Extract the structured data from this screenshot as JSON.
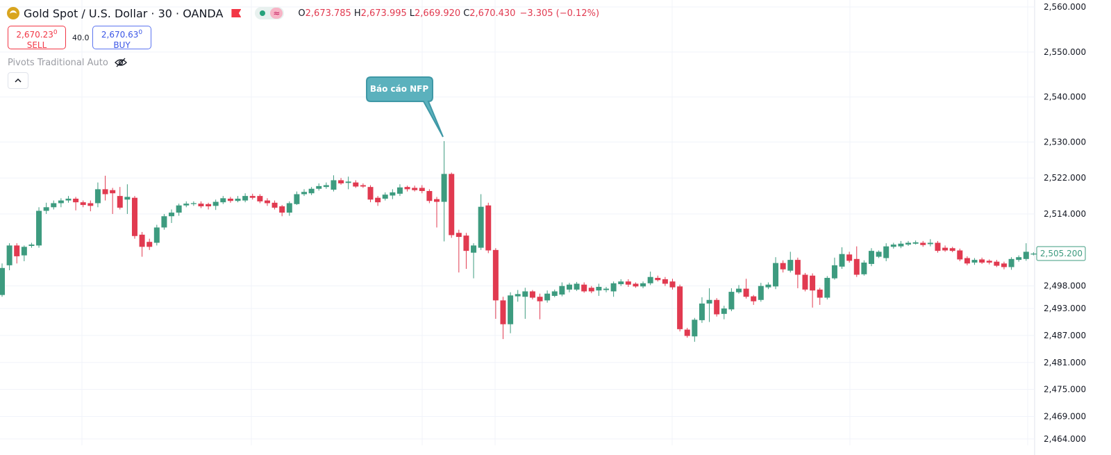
{
  "header": {
    "symbol": "Gold Spot / U.S. Dollar · 30 · OANDA",
    "ohlc": [
      {
        "key": "O",
        "value": "2,673.785"
      },
      {
        "key": "H",
        "value": "2,673.995"
      },
      {
        "key": "L",
        "value": "2,669.920"
      },
      {
        "key": "C",
        "value": "2,670.430"
      }
    ],
    "change": "−3.305 (−0.12%)"
  },
  "trade": {
    "sell_price": "2,670.23",
    "sell_price_pip": "0",
    "sell_label": "SELL",
    "spread": "40.0",
    "buy_price": "2,670.63",
    "buy_price_pip": "0",
    "buy_label": "BUY"
  },
  "indicator": "Pivots Traditional Auto",
  "chart_data": {
    "type": "candlestick",
    "up_color": "#3d9b7f",
    "down_color": "#e13a50",
    "grid": true,
    "annotation": "Báo cáo NFP",
    "ylim": [
      2462.6,
      2561.55
    ],
    "yticks": [
      {
        "value": 2560,
        "label": "2,560.000"
      },
      {
        "value": 2550,
        "label": "2,550.000"
      },
      {
        "value": 2540,
        "label": "2,540.000"
      },
      {
        "value": 2530,
        "label": "2,530.000"
      },
      {
        "value": 2522,
        "label": "2,522.000"
      },
      {
        "value": 2514,
        "label": "2,514.000"
      },
      {
        "value": 2498,
        "label": "2,498.000"
      },
      {
        "value": 2493,
        "label": "2,493.000"
      },
      {
        "value": 2487,
        "label": "2,487.000"
      },
      {
        "value": 2481,
        "label": "2,481.000"
      },
      {
        "value": 2475,
        "label": "2,475.000"
      },
      {
        "value": 2469,
        "label": "2,469.000"
      },
      {
        "value": 2464,
        "label": "2,464.000"
      }
    ],
    "last_price": {
      "value": 2505.2,
      "label": "2,505.200"
    },
    "candles": [
      {
        "o": 2496,
        "h": 2503,
        "l": 2495.6,
        "c": 2502
      },
      {
        "o": 2502.6,
        "h": 2507.5,
        "l": 2501.5,
        "c": 2507
      },
      {
        "o": 2507,
        "h": 2507.5,
        "l": 2503,
        "c": 2504.6
      },
      {
        "o": 2504.8,
        "h": 2507,
        "l": 2503.5,
        "c": 2506.7
      },
      {
        "o": 2506.9,
        "h": 2507.6,
        "l": 2506.5,
        "c": 2507.2
      },
      {
        "o": 2507,
        "h": 2515.5,
        "l": 2506.5,
        "c": 2514.7
      },
      {
        "o": 2514.7,
        "h": 2516.5,
        "l": 2514,
        "c": 2515.5
      },
      {
        "o": 2515.5,
        "h": 2517,
        "l": 2515,
        "c": 2516.4
      },
      {
        "o": 2516.4,
        "h": 2517.5,
        "l": 2515.5,
        "c": 2517
      },
      {
        "o": 2517,
        "h": 2518,
        "l": 2516.5,
        "c": 2517.4
      },
      {
        "o": 2517.4,
        "h": 2517.8,
        "l": 2514.8,
        "c": 2516.6
      },
      {
        "o": 2516.6,
        "h": 2517,
        "l": 2515.5,
        "c": 2516
      },
      {
        "o": 2516.4,
        "h": 2517,
        "l": 2514.6,
        "c": 2515.8
      },
      {
        "o": 2516.4,
        "h": 2521,
        "l": 2515.5,
        "c": 2519.5
      },
      {
        "o": 2519.5,
        "h": 2522.5,
        "l": 2517,
        "c": 2518.4
      },
      {
        "o": 2519.3,
        "h": 2519.8,
        "l": 2514,
        "c": 2518.6
      },
      {
        "o": 2518,
        "h": 2520,
        "l": 2515,
        "c": 2515.4
      },
      {
        "o": 2517.2,
        "h": 2520.6,
        "l": 2514,
        "c": 2517.8
      },
      {
        "o": 2517.6,
        "h": 2518,
        "l": 2508.5,
        "c": 2509.1
      },
      {
        "o": 2509.4,
        "h": 2510,
        "l": 2504.5,
        "c": 2506.7
      },
      {
        "o": 2507.8,
        "h": 2508.5,
        "l": 2506,
        "c": 2506.7
      },
      {
        "o": 2507.6,
        "h": 2511.6,
        "l": 2507,
        "c": 2511
      },
      {
        "o": 2511,
        "h": 2514,
        "l": 2510.5,
        "c": 2513.5
      },
      {
        "o": 2513.5,
        "h": 2515,
        "l": 2512,
        "c": 2514.3
      },
      {
        "o": 2514.3,
        "h": 2516.3,
        "l": 2513.6,
        "c": 2515.9
      },
      {
        "o": 2515.9,
        "h": 2516.8,
        "l": 2515.5,
        "c": 2516.3
      },
      {
        "o": 2516.2,
        "h": 2516.8,
        "l": 2515.8,
        "c": 2516.4
      },
      {
        "o": 2516.3,
        "h": 2516.8,
        "l": 2515.3,
        "c": 2515.7
      },
      {
        "o": 2516.2,
        "h": 2516.5,
        "l": 2515,
        "c": 2515.7
      },
      {
        "o": 2515.8,
        "h": 2517.2,
        "l": 2514.9,
        "c": 2516.7
      },
      {
        "o": 2516.6,
        "h": 2518,
        "l": 2516.2,
        "c": 2517.5
      },
      {
        "o": 2517.4,
        "h": 2517.8,
        "l": 2516.5,
        "c": 2516.9
      },
      {
        "o": 2516.9,
        "h": 2518,
        "l": 2516.6,
        "c": 2517.4
      },
      {
        "o": 2517,
        "h": 2518.6,
        "l": 2516.6,
        "c": 2518
      },
      {
        "o": 2518,
        "h": 2518.5,
        "l": 2517.2,
        "c": 2517.6
      },
      {
        "o": 2518,
        "h": 2518.4,
        "l": 2516.4,
        "c": 2516.8
      },
      {
        "o": 2517,
        "h": 2517.5,
        "l": 2515.8,
        "c": 2516.4
      },
      {
        "o": 2516.5,
        "h": 2517,
        "l": 2515,
        "c": 2515.4
      },
      {
        "o": 2515.7,
        "h": 2516,
        "l": 2513.5,
        "c": 2514.3
      },
      {
        "o": 2514.3,
        "h": 2516.8,
        "l": 2513.6,
        "c": 2516.4
      },
      {
        "o": 2516.2,
        "h": 2519,
        "l": 2516,
        "c": 2518.4
      },
      {
        "o": 2518.4,
        "h": 2519.5,
        "l": 2518,
        "c": 2518.9
      },
      {
        "o": 2518.6,
        "h": 2520,
        "l": 2518.2,
        "c": 2519.6
      },
      {
        "o": 2519.6,
        "h": 2520.8,
        "l": 2519.2,
        "c": 2520.2
      },
      {
        "o": 2520,
        "h": 2521,
        "l": 2519.6,
        "c": 2520.4
      },
      {
        "o": 2519.4,
        "h": 2522.6,
        "l": 2519,
        "c": 2521.5
      },
      {
        "o": 2521.5,
        "h": 2522,
        "l": 2520.5,
        "c": 2520.8
      },
      {
        "o": 2520.9,
        "h": 2522.3,
        "l": 2519.5,
        "c": 2521.2
      },
      {
        "o": 2521,
        "h": 2521.5,
        "l": 2519.8,
        "c": 2520.1
      },
      {
        "o": 2520.4,
        "h": 2520.8,
        "l": 2519.8,
        "c": 2520.1
      },
      {
        "o": 2520,
        "h": 2520.4,
        "l": 2516.6,
        "c": 2517.2
      },
      {
        "o": 2517.6,
        "h": 2518,
        "l": 2515.8,
        "c": 2516.6
      },
      {
        "o": 2517.4,
        "h": 2518.8,
        "l": 2517,
        "c": 2518.3
      },
      {
        "o": 2518.1,
        "h": 2519.5,
        "l": 2517.3,
        "c": 2518.8
      },
      {
        "o": 2518.5,
        "h": 2520.6,
        "l": 2518,
        "c": 2519.9
      },
      {
        "o": 2520,
        "h": 2520.3,
        "l": 2519,
        "c": 2519.5
      },
      {
        "o": 2519.8,
        "h": 2520.3,
        "l": 2519,
        "c": 2519.3
      },
      {
        "o": 2519.8,
        "h": 2520.4,
        "l": 2518.6,
        "c": 2519.1
      },
      {
        "o": 2519.1,
        "h": 2519.5,
        "l": 2516.4,
        "c": 2516.9
      },
      {
        "o": 2517.3,
        "h": 2517.8,
        "l": 2511,
        "c": 2516.7
      },
      {
        "o": 2516.7,
        "h": 2530.2,
        "l": 2507.9,
        "c": 2522.9
      },
      {
        "o": 2522.9,
        "h": 2523.2,
        "l": 2508.7,
        "c": 2509.3
      },
      {
        "o": 2509.8,
        "h": 2510.5,
        "l": 2501,
        "c": 2508.9
      },
      {
        "o": 2509.2,
        "h": 2509.8,
        "l": 2501.8,
        "c": 2505.8
      },
      {
        "o": 2505.4,
        "h": 2507.5,
        "l": 2499.7,
        "c": 2507
      },
      {
        "o": 2506.5,
        "h": 2518.4,
        "l": 2506,
        "c": 2515.6
      },
      {
        "o": 2515.9,
        "h": 2516.5,
        "l": 2505.3,
        "c": 2505.9
      },
      {
        "o": 2506,
        "h": 2506.4,
        "l": 2490.7,
        "c": 2494.8
      },
      {
        "o": 2494.8,
        "h": 2495.6,
        "l": 2486.2,
        "c": 2489.5
      },
      {
        "o": 2489.5,
        "h": 2496.6,
        "l": 2487.5,
        "c": 2495.9
      },
      {
        "o": 2495.7,
        "h": 2497.1,
        "l": 2494.5,
        "c": 2496.2
      },
      {
        "o": 2495.6,
        "h": 2497.6,
        "l": 2490.7,
        "c": 2496.8
      },
      {
        "o": 2496.8,
        "h": 2497.1,
        "l": 2495,
        "c": 2495.4
      },
      {
        "o": 2495.6,
        "h": 2496.3,
        "l": 2490.6,
        "c": 2494.6
      },
      {
        "o": 2494.8,
        "h": 2497,
        "l": 2494.3,
        "c": 2496.3
      },
      {
        "o": 2495.8,
        "h": 2497.2,
        "l": 2495.5,
        "c": 2496.8
      },
      {
        "o": 2496.1,
        "h": 2498.8,
        "l": 2495.7,
        "c": 2498
      },
      {
        "o": 2497.2,
        "h": 2498.7,
        "l": 2496.6,
        "c": 2498.3
      },
      {
        "o": 2497.2,
        "h": 2498.9,
        "l": 2496.9,
        "c": 2498.5
      },
      {
        "o": 2498.3,
        "h": 2498.8,
        "l": 2496.5,
        "c": 2496.8
      },
      {
        "o": 2497.6,
        "h": 2498,
        "l": 2496.4,
        "c": 2496.8
      },
      {
        "o": 2497,
        "h": 2498.5,
        "l": 2495.8,
        "c": 2497.8
      },
      {
        "o": 2497.1,
        "h": 2497.8,
        "l": 2496.6,
        "c": 2497.4
      },
      {
        "o": 2496.8,
        "h": 2499,
        "l": 2495.6,
        "c": 2498.6
      },
      {
        "o": 2498.4,
        "h": 2499.5,
        "l": 2498,
        "c": 2499
      },
      {
        "o": 2499,
        "h": 2499.5,
        "l": 2497.8,
        "c": 2498.3
      },
      {
        "o": 2498.5,
        "h": 2498.8,
        "l": 2497.6,
        "c": 2497.9
      },
      {
        "o": 2497.9,
        "h": 2499,
        "l": 2497.5,
        "c": 2498.6
      },
      {
        "o": 2498.6,
        "h": 2501.2,
        "l": 2498.2,
        "c": 2500
      },
      {
        "o": 2499.8,
        "h": 2500.3,
        "l": 2499,
        "c": 2499.3
      },
      {
        "o": 2499.5,
        "h": 2500,
        "l": 2498,
        "c": 2498.5
      },
      {
        "o": 2499,
        "h": 2499.6,
        "l": 2497.2,
        "c": 2497.7
      },
      {
        "o": 2497.9,
        "h": 2498.3,
        "l": 2487.9,
        "c": 2488.4
      },
      {
        "o": 2488.3,
        "h": 2488.7,
        "l": 2486.5,
        "c": 2486.9
      },
      {
        "o": 2486.8,
        "h": 2490.9,
        "l": 2485.6,
        "c": 2490.5
      },
      {
        "o": 2490.4,
        "h": 2495.5,
        "l": 2489.8,
        "c": 2494.1
      },
      {
        "o": 2494.1,
        "h": 2497.5,
        "l": 2490,
        "c": 2494.9
      },
      {
        "o": 2494.9,
        "h": 2495.3,
        "l": 2491.2,
        "c": 2491.7
      },
      {
        "o": 2491.8,
        "h": 2493.6,
        "l": 2490.6,
        "c": 2493
      },
      {
        "o": 2492.8,
        "h": 2497.5,
        "l": 2492.4,
        "c": 2496.7
      },
      {
        "o": 2496.6,
        "h": 2498.2,
        "l": 2496.3,
        "c": 2497.4
      },
      {
        "o": 2497.4,
        "h": 2499.6,
        "l": 2495.2,
        "c": 2495.6
      },
      {
        "o": 2495.7,
        "h": 2496,
        "l": 2493.8,
        "c": 2494.6
      },
      {
        "o": 2494.9,
        "h": 2498.7,
        "l": 2494.5,
        "c": 2498
      },
      {
        "o": 2497.7,
        "h": 2498.8,
        "l": 2497.3,
        "c": 2498.3
      },
      {
        "o": 2497.9,
        "h": 2504.4,
        "l": 2497.3,
        "c": 2503.1
      },
      {
        "o": 2503.1,
        "h": 2503.7,
        "l": 2501,
        "c": 2501.7
      },
      {
        "o": 2501.4,
        "h": 2505.6,
        "l": 2501,
        "c": 2503.8
      },
      {
        "o": 2503.8,
        "h": 2504.3,
        "l": 2497.5,
        "c": 2500.5
      },
      {
        "o": 2500.5,
        "h": 2500.9,
        "l": 2496.8,
        "c": 2497.2
      },
      {
        "o": 2500.3,
        "h": 2500.8,
        "l": 2493.2,
        "c": 2497
      },
      {
        "o": 2497.2,
        "h": 2497.6,
        "l": 2493.8,
        "c": 2495.4
      },
      {
        "o": 2495.4,
        "h": 2500.2,
        "l": 2495,
        "c": 2499.8
      },
      {
        "o": 2499.7,
        "h": 2504.3,
        "l": 2499.4,
        "c": 2502.6
      },
      {
        "o": 2502.3,
        "h": 2506.6,
        "l": 2501.8,
        "c": 2505.1
      },
      {
        "o": 2505,
        "h": 2505.6,
        "l": 2503.2,
        "c": 2503.6
      },
      {
        "o": 2504,
        "h": 2506.8,
        "l": 2500,
        "c": 2500.5
      },
      {
        "o": 2500.6,
        "h": 2503.7,
        "l": 2500.3,
        "c": 2503.2
      },
      {
        "o": 2502.9,
        "h": 2506.4,
        "l": 2502.4,
        "c": 2505.8
      },
      {
        "o": 2504.5,
        "h": 2505.9,
        "l": 2504.2,
        "c": 2505.6
      },
      {
        "o": 2504.2,
        "h": 2507.5,
        "l": 2503.5,
        "c": 2506.8
      },
      {
        "o": 2506.7,
        "h": 2507.6,
        "l": 2506.3,
        "c": 2507.2
      },
      {
        "o": 2506.8,
        "h": 2508,
        "l": 2506.4,
        "c": 2507.4
      },
      {
        "o": 2507.2,
        "h": 2508,
        "l": 2506.9,
        "c": 2507.6
      },
      {
        "o": 2507.4,
        "h": 2508.1,
        "l": 2507.2,
        "c": 2507.7
      },
      {
        "o": 2507.6,
        "h": 2508,
        "l": 2506.7,
        "c": 2507.1
      },
      {
        "o": 2507.3,
        "h": 2508.4,
        "l": 2506.8,
        "c": 2507.6
      },
      {
        "o": 2507.6,
        "h": 2508,
        "l": 2505.4,
        "c": 2505.8
      },
      {
        "o": 2506.5,
        "h": 2507,
        "l": 2505.6,
        "c": 2505.9
      },
      {
        "o": 2506.4,
        "h": 2506.7,
        "l": 2505.5,
        "c": 2505.8
      },
      {
        "o": 2505.9,
        "h": 2506.3,
        "l": 2503.5,
        "c": 2503.9
      },
      {
        "o": 2504.2,
        "h": 2504.6,
        "l": 2502.6,
        "c": 2503
      },
      {
        "o": 2503.2,
        "h": 2504.2,
        "l": 2502.7,
        "c": 2503.8
      },
      {
        "o": 2503.9,
        "h": 2504.3,
        "l": 2502.9,
        "c": 2503.2
      },
      {
        "o": 2503.6,
        "h": 2503.9,
        "l": 2502.8,
        "c": 2503.2
      },
      {
        "o": 2503.4,
        "h": 2503.8,
        "l": 2502.2,
        "c": 2502.5
      },
      {
        "o": 2503,
        "h": 2503.4,
        "l": 2501.7,
        "c": 2502.2
      },
      {
        "o": 2502.2,
        "h": 2504.4,
        "l": 2501.6,
        "c": 2504
      },
      {
        "o": 2503.8,
        "h": 2504.8,
        "l": 2503.4,
        "c": 2504.4
      },
      {
        "o": 2504,
        "h": 2507.5,
        "l": 2503.6,
        "c": 2505.6
      },
      {
        "o": 2505,
        "h": 2505.5,
        "l": 2504.8,
        "c": 2505.2
      }
    ]
  }
}
